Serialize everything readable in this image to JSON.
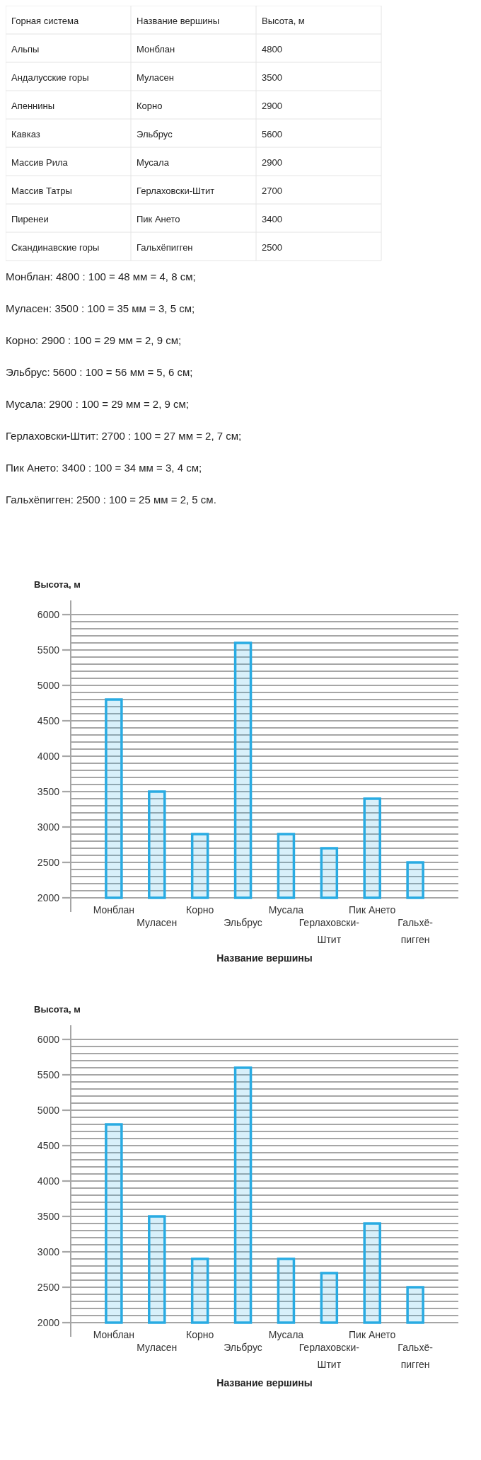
{
  "chart_data": [
    {
      "type": "other",
      "cell_labels": [
        [
          "Горная система",
          "Название вершины",
          "Высота, м"
        ],
        [
          "Альпы",
          "Монблан",
          "4800"
        ],
        [
          "Андалусские горы",
          "Муласен",
          "3500"
        ],
        [
          "Апеннины",
          "Корно",
          "2900"
        ],
        [
          "Кавказ",
          "Эльбрус",
          "5600"
        ],
        [
          "Массив Рила",
          "Мусала",
          "2900"
        ],
        [
          "Массив Татры",
          "Герлаховски-Штит",
          "2700"
        ],
        [
          "Пиренеи",
          "Пик Ането",
          "3400"
        ],
        [
          "Скандинавские горы",
          "Гальхёпигген",
          "2500"
        ]
      ],
      "annotations": [
        "Монблан: 4800 : 100 = 48 мм = 4, 8 см;",
        "Муласен: 3500 : 100 = 35 мм = 3, 5 см;",
        "Корно: 2900 : 100 = 29 мм = 2, 9 см;",
        "Эльбрус: 5600 : 100 = 56 мм = 5, 6 см;",
        "Мусала: 2900 : 100 = 29 мм = 2, 9 см;",
        "Герлаховски-Штит: 2700 : 100 = 27 мм = 2, 7 см;",
        "Пик Ането: 3400 : 100 = 34 мм = 3, 4 см;",
        "Гальхёпигген: 2500 : 100 = 25 мм = 2, 5 см."
      ]
    },
    {
      "type": "bar",
      "ylabel": "Высота, м",
      "xlabel": "Название вершины",
      "categories": [
        "Монблан",
        "Муласен",
        "Корно",
        "Эльбрус",
        "Мусала",
        "Герлаховски-Штит",
        "Пик Ането",
        "Гальхё-пигген"
      ],
      "values": [
        4800,
        3500,
        2900,
        5600,
        2900,
        2700,
        3400,
        2500
      ],
      "color": "#29abe2",
      "ylim": [
        2000,
        6000
      ],
      "grid": "y",
      "yticks": [
        2000,
        {
          "value": 2100,
          "label": null
        },
        {
          "value": 2200,
          "label": null
        },
        {
          "value": 2300,
          "label": null
        },
        {
          "value": 2400,
          "label": null
        },
        2500,
        {
          "value": 2600,
          "label": null
        },
        {
          "value": 2700,
          "label": null
        },
        {
          "value": 2800,
          "label": null
        },
        {
          "value": 2900,
          "label": null
        },
        3000,
        {
          "value": 3100,
          "label": null
        },
        {
          "value": 3200,
          "label": null
        },
        {
          "value": 3300,
          "label": null
        },
        {
          "value": 3400,
          "label": null
        },
        3500,
        {
          "value": 3600,
          "label": null
        },
        {
          "value": 3700,
          "label": null
        },
        {
          "value": 3800,
          "label": null
        },
        {
          "value": 3900,
          "label": null
        },
        4000,
        {
          "value": 4100,
          "label": null
        },
        {
          "value": 4200,
          "label": null
        },
        {
          "value": 4300,
          "label": null
        },
        {
          "value": 4400,
          "label": null
        },
        4500,
        {
          "value": 4600,
          "label": null
        },
        {
          "value": 4700,
          "label": null
        },
        {
          "value": 4800,
          "label": null
        },
        {
          "value": 4900,
          "label": null
        },
        5000,
        {
          "value": 5100,
          "label": null
        },
        {
          "value": 5200,
          "label": null
        },
        {
          "value": 5300,
          "label": null
        },
        {
          "value": 5400,
          "label": null
        },
        5500,
        {
          "value": 5600,
          "label": null
        },
        {
          "value": 5700,
          "label": null
        },
        {
          "value": 5800,
          "label": null
        },
        {
          "value": 5900,
          "label": null
        },
        6000
      ]
    },
    {
      "type": "bar",
      "ylabel": "Высота, м",
      "xlabel": "Название вершины",
      "categories": [
        "Монблан",
        "Муласен",
        "Корно",
        "Эльбрус",
        "Мусала",
        "Герлаховски-Штит",
        "Пик Ането",
        "Гальхё-пигген"
      ],
      "values": [
        4800,
        3500,
        2900,
        5600,
        2900,
        2700,
        3400,
        2500
      ],
      "color": "#29abe2",
      "ylim": [
        2000,
        6000
      ],
      "grid": "y",
      "yticks": [
        2000,
        {
          "value": 2100,
          "label": null
        },
        {
          "value": 2200,
          "label": null
        },
        {
          "value": 2300,
          "label": null
        },
        {
          "value": 2400,
          "label": null
        },
        2500,
        {
          "value": 2600,
          "label": null
        },
        {
          "value": 2700,
          "label": null
        },
        {
          "value": 2800,
          "label": null
        },
        {
          "value": 2900,
          "label": null
        },
        3000,
        {
          "value": 3100,
          "label": null
        },
        {
          "value": 3200,
          "label": null
        },
        {
          "value": 3300,
          "label": null
        },
        {
          "value": 3400,
          "label": null
        },
        3500,
        {
          "value": 3600,
          "label": null
        },
        {
          "value": 3700,
          "label": null
        },
        {
          "value": 3800,
          "label": null
        },
        {
          "value": 3900,
          "label": null
        },
        4000,
        {
          "value": 4100,
          "label": null
        },
        {
          "value": 4200,
          "label": null
        },
        {
          "value": 4300,
          "label": null
        },
        {
          "value": 4400,
          "label": null
        },
        4500,
        {
          "value": 4600,
          "label": null
        },
        {
          "value": 4700,
          "label": null
        },
        {
          "value": 4800,
          "label": null
        },
        {
          "value": 4900,
          "label": null
        },
        5000,
        {
          "value": 5100,
          "label": null
        },
        {
          "value": 5200,
          "label": null
        },
        {
          "value": 5300,
          "label": null
        },
        {
          "value": 5400,
          "label": null
        },
        5500,
        {
          "value": 5600,
          "label": null
        },
        {
          "value": 5700,
          "label": null
        },
        {
          "value": 5800,
          "label": null
        },
        {
          "value": 5900,
          "label": null
        },
        6000
      ]
    }
  ]
}
